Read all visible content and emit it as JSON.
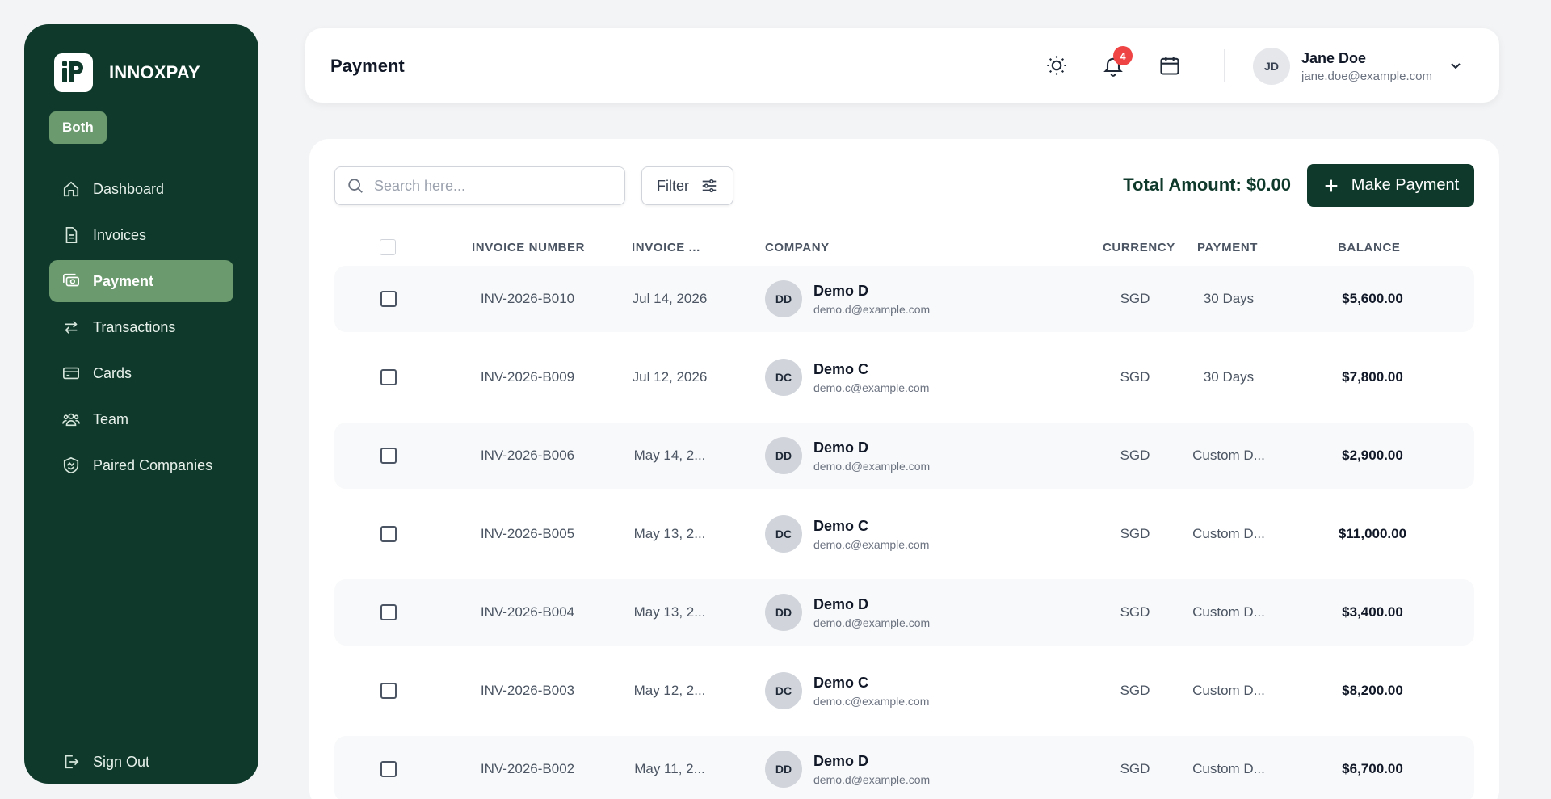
{
  "app": {
    "brand": "INNOXPAY",
    "mode_badge": "Both"
  },
  "sidebar": {
    "items": [
      {
        "label": "Dashboard",
        "icon": "home-icon",
        "active": false
      },
      {
        "label": "Invoices",
        "icon": "document-icon",
        "active": false
      },
      {
        "label": "Payment",
        "icon": "cash-icon",
        "active": true
      },
      {
        "label": "Transactions",
        "icon": "arrows-exchange-icon",
        "active": false
      },
      {
        "label": "Cards",
        "icon": "card-icon",
        "active": false
      },
      {
        "label": "Team",
        "icon": "users-icon",
        "active": false
      },
      {
        "label": "Paired Companies",
        "icon": "handshake-shield-icon",
        "active": false
      }
    ],
    "sign_out": "Sign Out"
  },
  "header": {
    "title": "Payment",
    "notification_count": "4",
    "user": {
      "initials": "JD",
      "name": "Jane Doe",
      "email": "jane.doe@example.com"
    }
  },
  "toolbar": {
    "search_placeholder": "Search here...",
    "filter_label": "Filter",
    "total_label": "Total Amount: $0.00",
    "make_payment_label": "Make Payment"
  },
  "table": {
    "columns": [
      "INVOICE NUMBER",
      "INVOICE ...",
      "COMPANY",
      "CURRENCY",
      "PAYMENT",
      "BALANCE"
    ],
    "rows": [
      {
        "invoice": "INV-2026-B010",
        "date": "Jul 14, 2026",
        "co_initials": "DD",
        "co_name": "Demo D",
        "co_email": "demo.d@example.com",
        "currency": "SGD",
        "payment": "30 Days",
        "balance": "$5,600.00"
      },
      {
        "invoice": "INV-2026-B009",
        "date": "Jul 12, 2026",
        "co_initials": "DC",
        "co_name": "Demo C",
        "co_email": "demo.c@example.com",
        "currency": "SGD",
        "payment": "30 Days",
        "balance": "$7,800.00"
      },
      {
        "invoice": "INV-2026-B006",
        "date": "May 14, 2...",
        "co_initials": "DD",
        "co_name": "Demo D",
        "co_email": "demo.d@example.com",
        "currency": "SGD",
        "payment": "Custom D...",
        "balance": "$2,900.00"
      },
      {
        "invoice": "INV-2026-B005",
        "date": "May 13, 2...",
        "co_initials": "DC",
        "co_name": "Demo C",
        "co_email": "demo.c@example.com",
        "currency": "SGD",
        "payment": "Custom D...",
        "balance": "$11,000.00"
      },
      {
        "invoice": "INV-2026-B004",
        "date": "May 13, 2...",
        "co_initials": "DD",
        "co_name": "Demo D",
        "co_email": "demo.d@example.com",
        "currency": "SGD",
        "payment": "Custom D...",
        "balance": "$3,400.00"
      },
      {
        "invoice": "INV-2026-B003",
        "date": "May 12, 2...",
        "co_initials": "DC",
        "co_name": "Demo C",
        "co_email": "demo.c@example.com",
        "currency": "SGD",
        "payment": "Custom D...",
        "balance": "$8,200.00"
      },
      {
        "invoice": "INV-2026-B002",
        "date": "May 11, 2...",
        "co_initials": "DD",
        "co_name": "Demo D",
        "co_email": "demo.d@example.com",
        "currency": "SGD",
        "payment": "Custom D...",
        "balance": "$6,700.00"
      }
    ]
  },
  "colors": {
    "brand_dark": "#0f3a2b",
    "brand_accent": "#6b9a6e",
    "notification": "#ef4444"
  }
}
